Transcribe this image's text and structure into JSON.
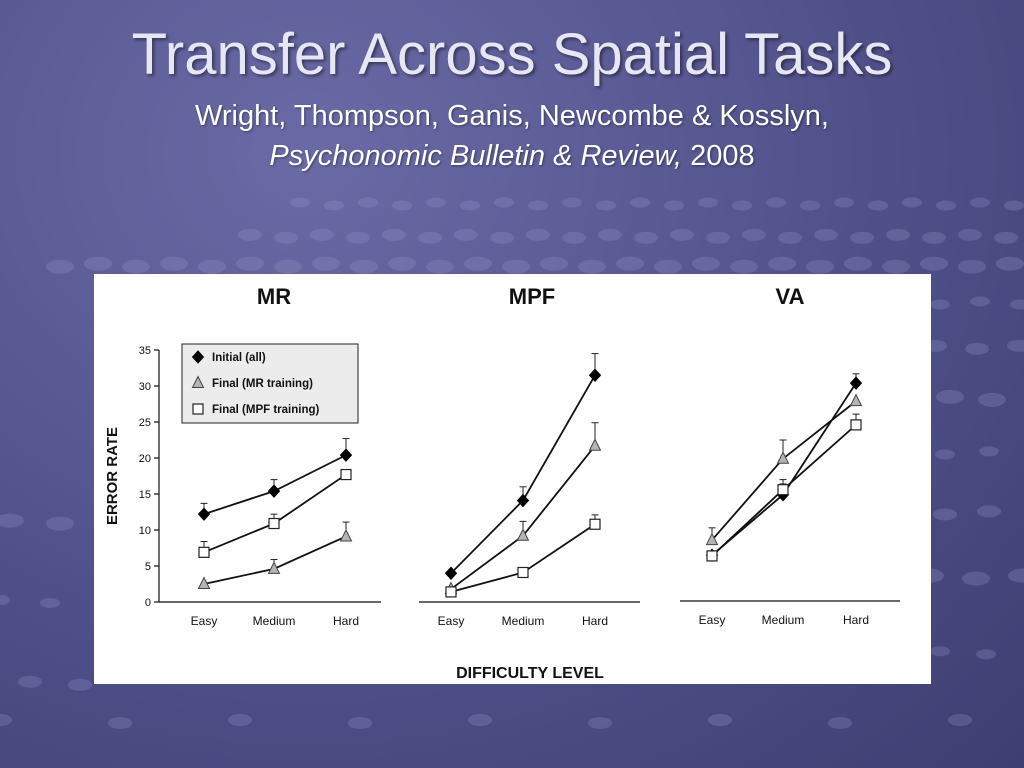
{
  "slide": {
    "title": "Transfer Across Spatial Tasks",
    "subtitle_line1": "Wright, Thompson, Ganis, Newcombe & Kosslyn,",
    "journal": "Psychonomic Bulletin & Review,",
    "year": "2008"
  },
  "chart_data": {
    "type": "line",
    "xlabel": "DIFFICULTY LEVEL",
    "ylabel": "ERROR RATE",
    "ylim": [
      0,
      35
    ],
    "yticks": [
      "0",
      "5",
      "10",
      "15",
      "20",
      "25",
      "30",
      "35"
    ],
    "categories": [
      "Easy",
      "Medium",
      "Hard"
    ],
    "legend": {
      "placement": "top-left of first panel",
      "entries": [
        {
          "label": "Initial (all)",
          "marker": "diamond"
        },
        {
          "label": "Final (MR training)",
          "marker": "triangle"
        },
        {
          "label": "Final (MPF training)",
          "marker": "square"
        }
      ]
    },
    "panels": [
      {
        "title": "MR",
        "series": [
          {
            "name": "Initial (all)",
            "values": [
              12.2,
              15.4,
              20.4
            ],
            "errors": [
              1.5,
              1.6,
              2.3
            ]
          },
          {
            "name": "Final (MR training)",
            "values": [
              2.5,
              4.6,
              9.1
            ],
            "errors": [
              0,
              1.3,
              2.0
            ]
          },
          {
            "name": "Final (MPF training)",
            "values": [
              6.9,
              10.9,
              17.7
            ],
            "errors": [
              1.5,
              1.3,
              0
            ]
          }
        ]
      },
      {
        "title": "MPF",
        "series": [
          {
            "name": "Initial (all)",
            "values": [
              4.0,
              14.1,
              31.5
            ],
            "errors": [
              0,
              1.9,
              3.0
            ]
          },
          {
            "name": "Final (MR training)",
            "values": [
              1.8,
              9.2,
              21.7
            ],
            "errors": [
              0,
              2.0,
              3.2
            ]
          },
          {
            "name": "Final (MPF training)",
            "values": [
              1.4,
              4.1,
              10.8
            ],
            "errors": [
              0,
              0,
              1.3
            ]
          }
        ]
      },
      {
        "title": "VA",
        "series": [
          {
            "name": "Initial (all)",
            "values": [
              6.5,
              14.9,
              30.4
            ],
            "errors": [
              0,
              1.5,
              1.3
            ]
          },
          {
            "name": "Final (MR training)",
            "values": [
              8.6,
              19.9,
              27.9
            ],
            "errors": [
              1.7,
              2.6,
              0
            ]
          },
          {
            "name": "Final (MPF training)",
            "values": [
              6.4,
              15.6,
              24.6
            ],
            "errors": [
              0,
              1.4,
              1.5
            ]
          }
        ]
      }
    ],
    "grid": false,
    "colors": {
      "line": "#111111",
      "triangle_fill": "#b4b4b4",
      "square_fill": "#ffffff",
      "diamond_fill": "#000000"
    }
  }
}
